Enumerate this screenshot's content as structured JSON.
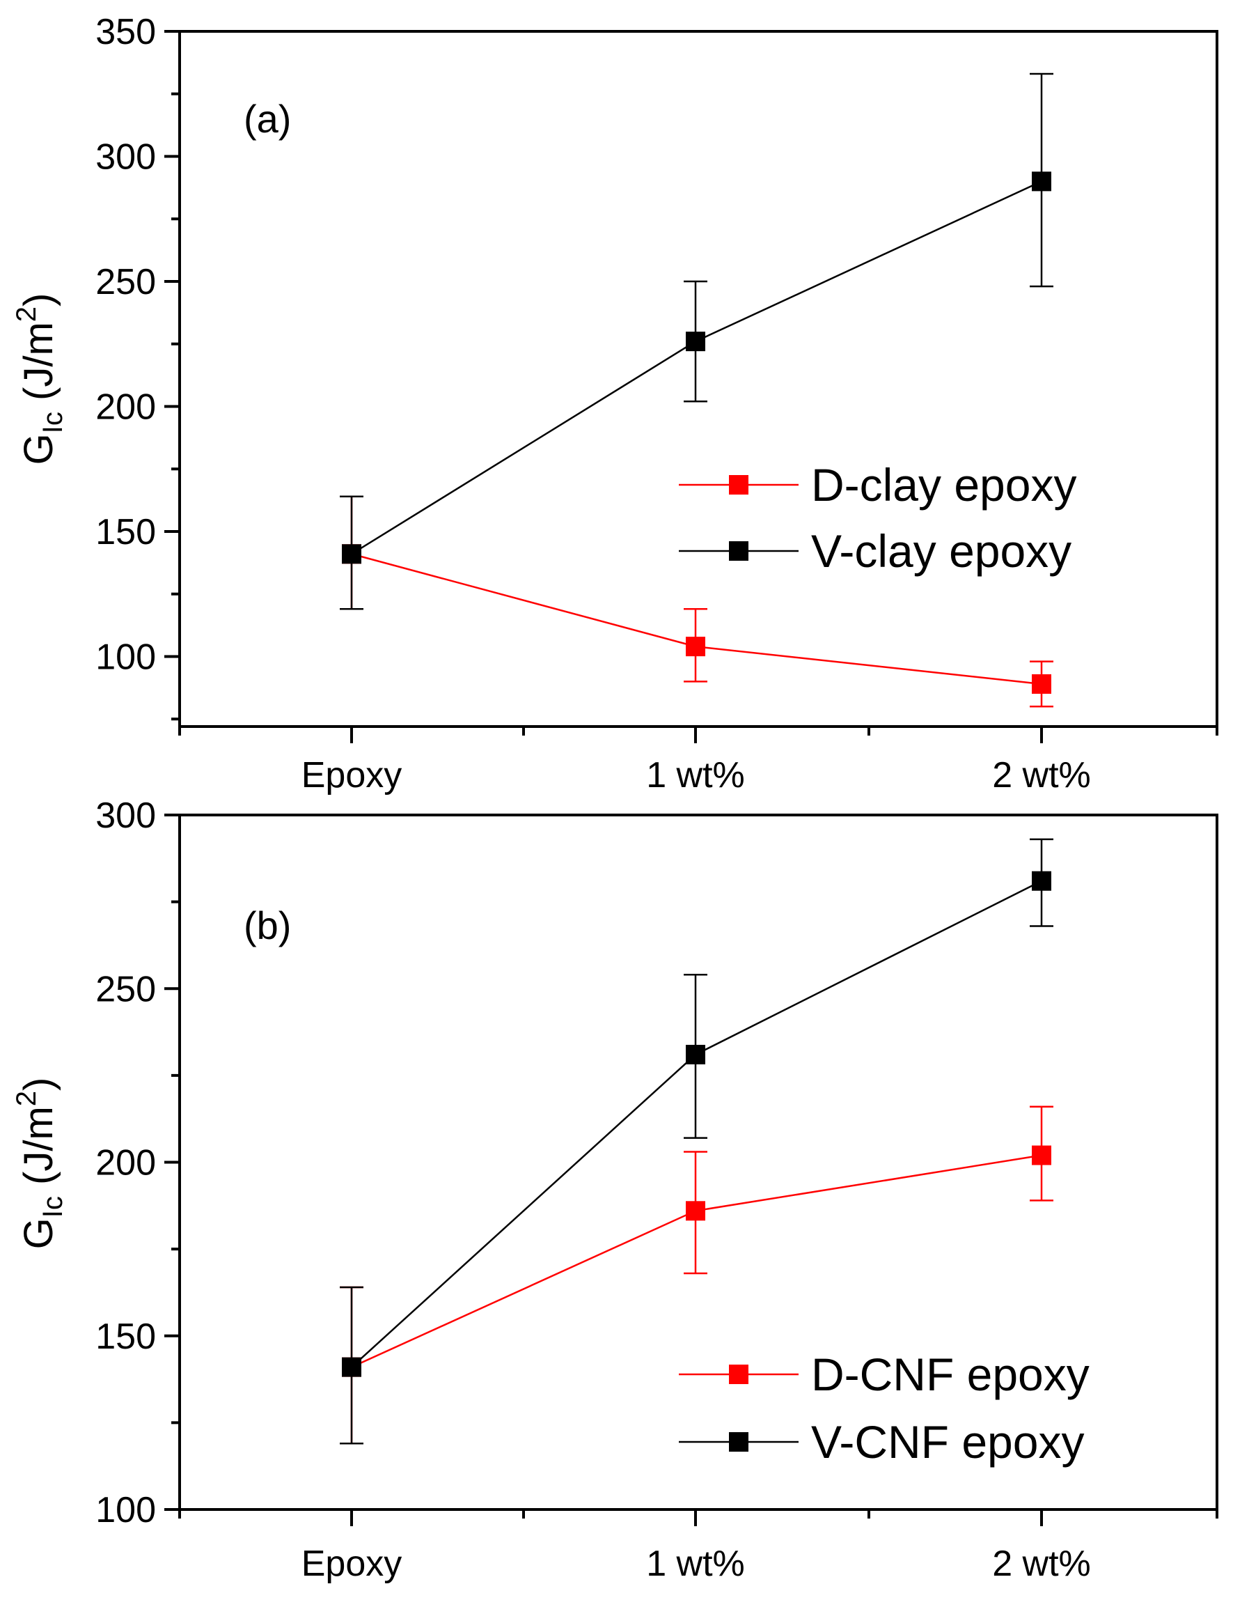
{
  "chart_data": [
    {
      "type": "line",
      "panel_label": "(a)",
      "categories": [
        "Epoxy",
        "1 wt%",
        "2 wt%"
      ],
      "ylabel": {
        "main": "G",
        "sub": "Ic",
        "unit": " (J/m",
        "sup": "2",
        "close": ")"
      },
      "ylim": [
        72,
        350
      ],
      "yticks": [
        100,
        150,
        200,
        250,
        300,
        350
      ],
      "series": [
        {
          "name": "D-clay epoxy",
          "color": "#ff0000",
          "values": [
            141,
            104,
            89
          ],
          "err_low": [
            119,
            90,
            80
          ],
          "err_high": [
            164,
            119,
            98
          ]
        },
        {
          "name": "V-clay epoxy",
          "color": "#000000",
          "values": [
            141,
            226,
            290
          ],
          "err_low": [
            119,
            202,
            248
          ],
          "err_high": [
            164,
            250,
            333
          ]
        }
      ],
      "legend": "center-right"
    },
    {
      "type": "line",
      "panel_label": "(b)",
      "categories": [
        "Epoxy",
        "1 wt%",
        "2 wt%"
      ],
      "ylabel": {
        "main": "G",
        "sub": "Ic",
        "unit": " (J/m",
        "sup": "2",
        "close": ")"
      },
      "ylim": [
        100,
        300
      ],
      "yticks": [
        100,
        150,
        200,
        250,
        300
      ],
      "series": [
        {
          "name": "D-CNF epoxy",
          "color": "#ff0000",
          "values": [
            141,
            186,
            202
          ],
          "err_low": [
            119,
            168,
            189
          ],
          "err_high": [
            164,
            203,
            216
          ]
        },
        {
          "name": "V-CNF epoxy",
          "color": "#000000",
          "values": [
            141,
            231,
            281
          ],
          "err_low": [
            119,
            207,
            268
          ],
          "err_high": [
            164,
            254,
            293
          ]
        }
      ],
      "legend": "bottom-right"
    }
  ]
}
